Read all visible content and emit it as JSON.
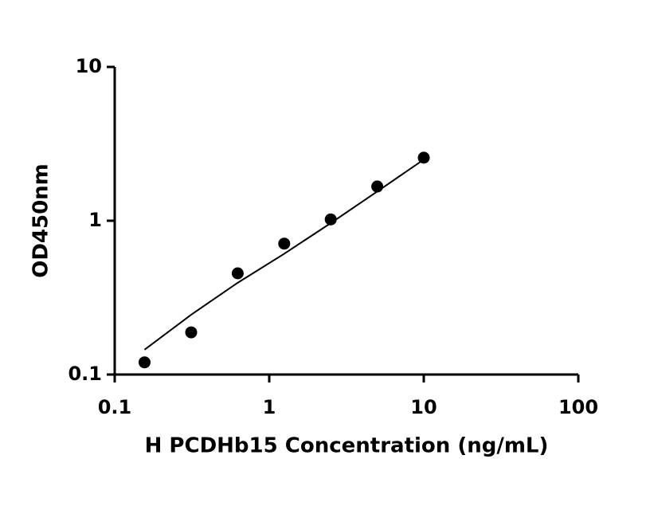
{
  "chart_data": {
    "type": "scatter",
    "x_label": "H PCDHb15 Concentration (ng/mL)",
    "y_label": "OD450nm",
    "xscale": "log",
    "yscale": "log",
    "xlim": [
      0.1,
      100
    ],
    "ylim": [
      0.1,
      10
    ],
    "xticks": [
      0.1,
      1,
      10,
      100
    ],
    "yticks": [
      0.1,
      1,
      10
    ],
    "series": [
      {
        "mode": "markers",
        "color": "#000000",
        "x": [
          0.156,
          0.3125,
          0.625,
          1.25,
          2.5,
          5,
          10
        ],
        "values": [
          0.12,
          0.188,
          0.455,
          0.71,
          1.02,
          1.67,
          2.57
        ]
      },
      {
        "mode": "line",
        "color": "#000000",
        "x": [
          0.156,
          0.3125,
          0.625,
          1.25,
          2.5,
          5,
          10
        ],
        "values": [
          0.145,
          0.245,
          0.395,
          0.61,
          0.965,
          1.55,
          2.5
        ]
      }
    ]
  }
}
